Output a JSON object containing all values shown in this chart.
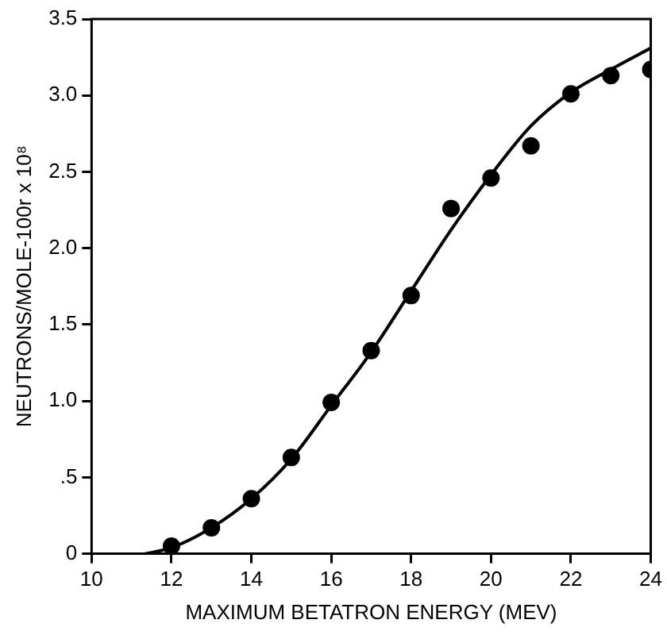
{
  "chart_data": {
    "type": "scatter",
    "xlabel": "MAXIMUM BETATRON ENERGY (MEV)",
    "ylabel": "NEUTRONS/MOLE-100r x 10⁸",
    "xlim": [
      10,
      24
    ],
    "xticks": [
      10,
      12,
      14,
      16,
      18,
      20,
      22,
      24
    ],
    "ylim": [
      0,
      3.5
    ],
    "yticks": [
      0,
      {
        "value": 0.5,
        "label": ".5"
      },
      {
        "value": 1,
        "label": "1.0"
      },
      {
        "value": 1.5,
        "label": "1.5"
      },
      {
        "value": 2,
        "label": "2.0"
      },
      {
        "value": 2.5,
        "label": "2.5"
      },
      {
        "value": 3,
        "label": "3.0"
      },
      {
        "value": 3.5,
        "label": "3.5"
      }
    ],
    "grid": false,
    "legend": false,
    "marker": "circle",
    "series": [
      {
        "type": "scatter",
        "color": "#000000",
        "x": [
          12,
          13,
          14,
          15,
          16,
          17,
          18,
          19,
          20,
          21,
          22,
          23,
          24
        ],
        "values": [
          0.05,
          0.17,
          0.36,
          0.63,
          0.99,
          1.33,
          1.69,
          2.26,
          2.46,
          2.67,
          3.01,
          3.13,
          3.17
        ]
      },
      {
        "type": "line",
        "color": "#000000",
        "line_style": "solid",
        "marker": "none",
        "x": [
          11.35,
          12,
          13,
          14,
          15,
          16,
          17,
          18,
          19,
          20,
          21,
          22,
          23,
          24
        ],
        "values": [
          0,
          0.04,
          0.17,
          0.36,
          0.62,
          0.97,
          1.32,
          1.72,
          2.12,
          2.48,
          2.8,
          3.02,
          3.17,
          3.31
        ]
      }
    ]
  }
}
